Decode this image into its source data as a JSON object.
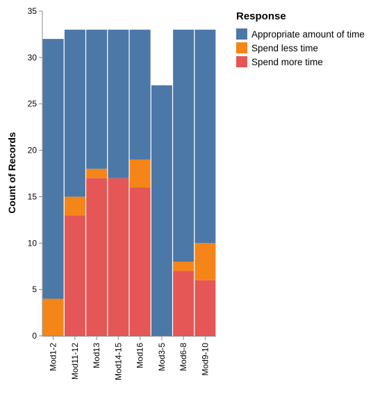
{
  "chart_data": {
    "type": "bar",
    "stacked": true,
    "categories": [
      "Mod1-2",
      "Mod11-12",
      "Mod13",
      "Mod14-15",
      "Mod16",
      "Mod3-5",
      "Mod6-8",
      "Mod9-10"
    ],
    "series": [
      {
        "name": "Spend more time",
        "color": "#e45756",
        "values": [
          0,
          13,
          17,
          17,
          16,
          0,
          7,
          6
        ]
      },
      {
        "name": "Spend less time",
        "color": "#f58518",
        "values": [
          4,
          2,
          1,
          0,
          3,
          0,
          1,
          4
        ]
      },
      {
        "name": "Appropriate amount of time",
        "color": "#4c78a8",
        "values": [
          28,
          18,
          15,
          16,
          14,
          27,
          25,
          23
        ]
      }
    ],
    "ylabel": "Count of Records",
    "xlabel": "",
    "ylim": [
      0,
      35
    ],
    "yticks": [
      0,
      5,
      10,
      15,
      20,
      25,
      30,
      35
    ],
    "grid": false,
    "legend": {
      "title": "Response",
      "placement": "right",
      "entries": [
        "Appropriate amount of time",
        "Spend less time",
        "Spend more time"
      ]
    }
  }
}
